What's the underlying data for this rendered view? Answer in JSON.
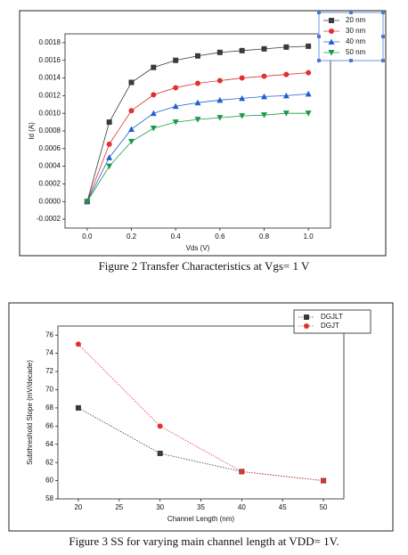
{
  "chart_data": [
    {
      "type": "line",
      "caption": "Figure 2 Transfer Characteristics at Vgs= 1 V",
      "x_label": "Vds (V)",
      "y_label": "Id (A)",
      "x": [
        0,
        0.1,
        0.2,
        0.3,
        0.4,
        0.5,
        0.6,
        0.7,
        0.8,
        0.9,
        1.0
      ],
      "xlim": [
        -0.1,
        1.1
      ],
      "xticks": [
        {
          "value": 0,
          "label": "0.0"
        },
        0.2,
        0.4,
        0.6,
        0.8,
        {
          "value": 1,
          "label": "1.0"
        }
      ],
      "ylim": [
        -0.0003,
        0.0019
      ],
      "yticks": [
        {
          "value": -0.0002,
          "label": "-0.0002"
        },
        {
          "value": 0,
          "label": "0.0000"
        },
        {
          "value": 0.0002,
          "label": "0.0002"
        },
        {
          "value": 0.0004,
          "label": "0.0004"
        },
        {
          "value": 0.0006,
          "label": "0.0006"
        },
        {
          "value": 0.0008,
          "label": "0.0008"
        },
        {
          "value": 0.001,
          "label": "0.0010"
        },
        {
          "value": 0.0012,
          "label": "0.0012"
        },
        {
          "value": 0.0014,
          "label": "0.0014"
        },
        {
          "value": 0.0016,
          "label": "0.0016"
        },
        {
          "value": 0.0018,
          "label": "0.0018"
        }
      ],
      "line_style": "solid",
      "series": [
        {
          "name": "20 nm",
          "color": "#3a3a3a",
          "marker": "square",
          "values": [
            0,
            0.0009,
            0.00135,
            0.00152,
            0.0016,
            0.00165,
            0.00169,
            0.00171,
            0.00173,
            0.00175,
            0.00176
          ]
        },
        {
          "name": "30 nm",
          "color": "#e03030",
          "marker": "circle",
          "values": [
            0,
            0.00065,
            0.00103,
            0.00121,
            0.00129,
            0.00134,
            0.00137,
            0.0014,
            0.00142,
            0.00144,
            0.00146
          ]
        },
        {
          "name": "40 nm",
          "color": "#1f5fd0",
          "marker": "triangle-up",
          "values": [
            0,
            0.0005,
            0.00082,
            0.001,
            0.00108,
            0.00112,
            0.00115,
            0.00117,
            0.00119,
            0.0012,
            0.00122
          ]
        },
        {
          "name": "50 nm",
          "color": "#1a9a4a",
          "marker": "triangle-down",
          "values": [
            0,
            0.0004,
            0.00068,
            0.00083,
            0.0009,
            0.00093,
            0.00095,
            0.00097,
            0.00098,
            0.001,
            0.001
          ]
        }
      ]
    },
    {
      "type": "line",
      "caption": "Figure 3  SS  for varying main channel length at VDD= 1V.",
      "x_label": "Channel Length (nm)",
      "y_label": "Subthreshold Slope (mV/decade)",
      "x": [
        20,
        30,
        40,
        50
      ],
      "xlim": [
        17.5,
        52.5
      ],
      "xticks": [
        20,
        25,
        30,
        35,
        40,
        45,
        50
      ],
      "ylim": [
        58,
        77
      ],
      "yticks": [
        58,
        60,
        62,
        64,
        66,
        68,
        70,
        72,
        74,
        76
      ],
      "line_style": "dotted",
      "series": [
        {
          "name": "DGJLT",
          "color": "#3a3a3a",
          "marker": "square",
          "values": [
            68,
            63,
            61,
            60
          ]
        },
        {
          "name": "DGJT",
          "color": "#e03030",
          "marker": "circle",
          "values": [
            75,
            66,
            61,
            60
          ]
        }
      ]
    }
  ]
}
